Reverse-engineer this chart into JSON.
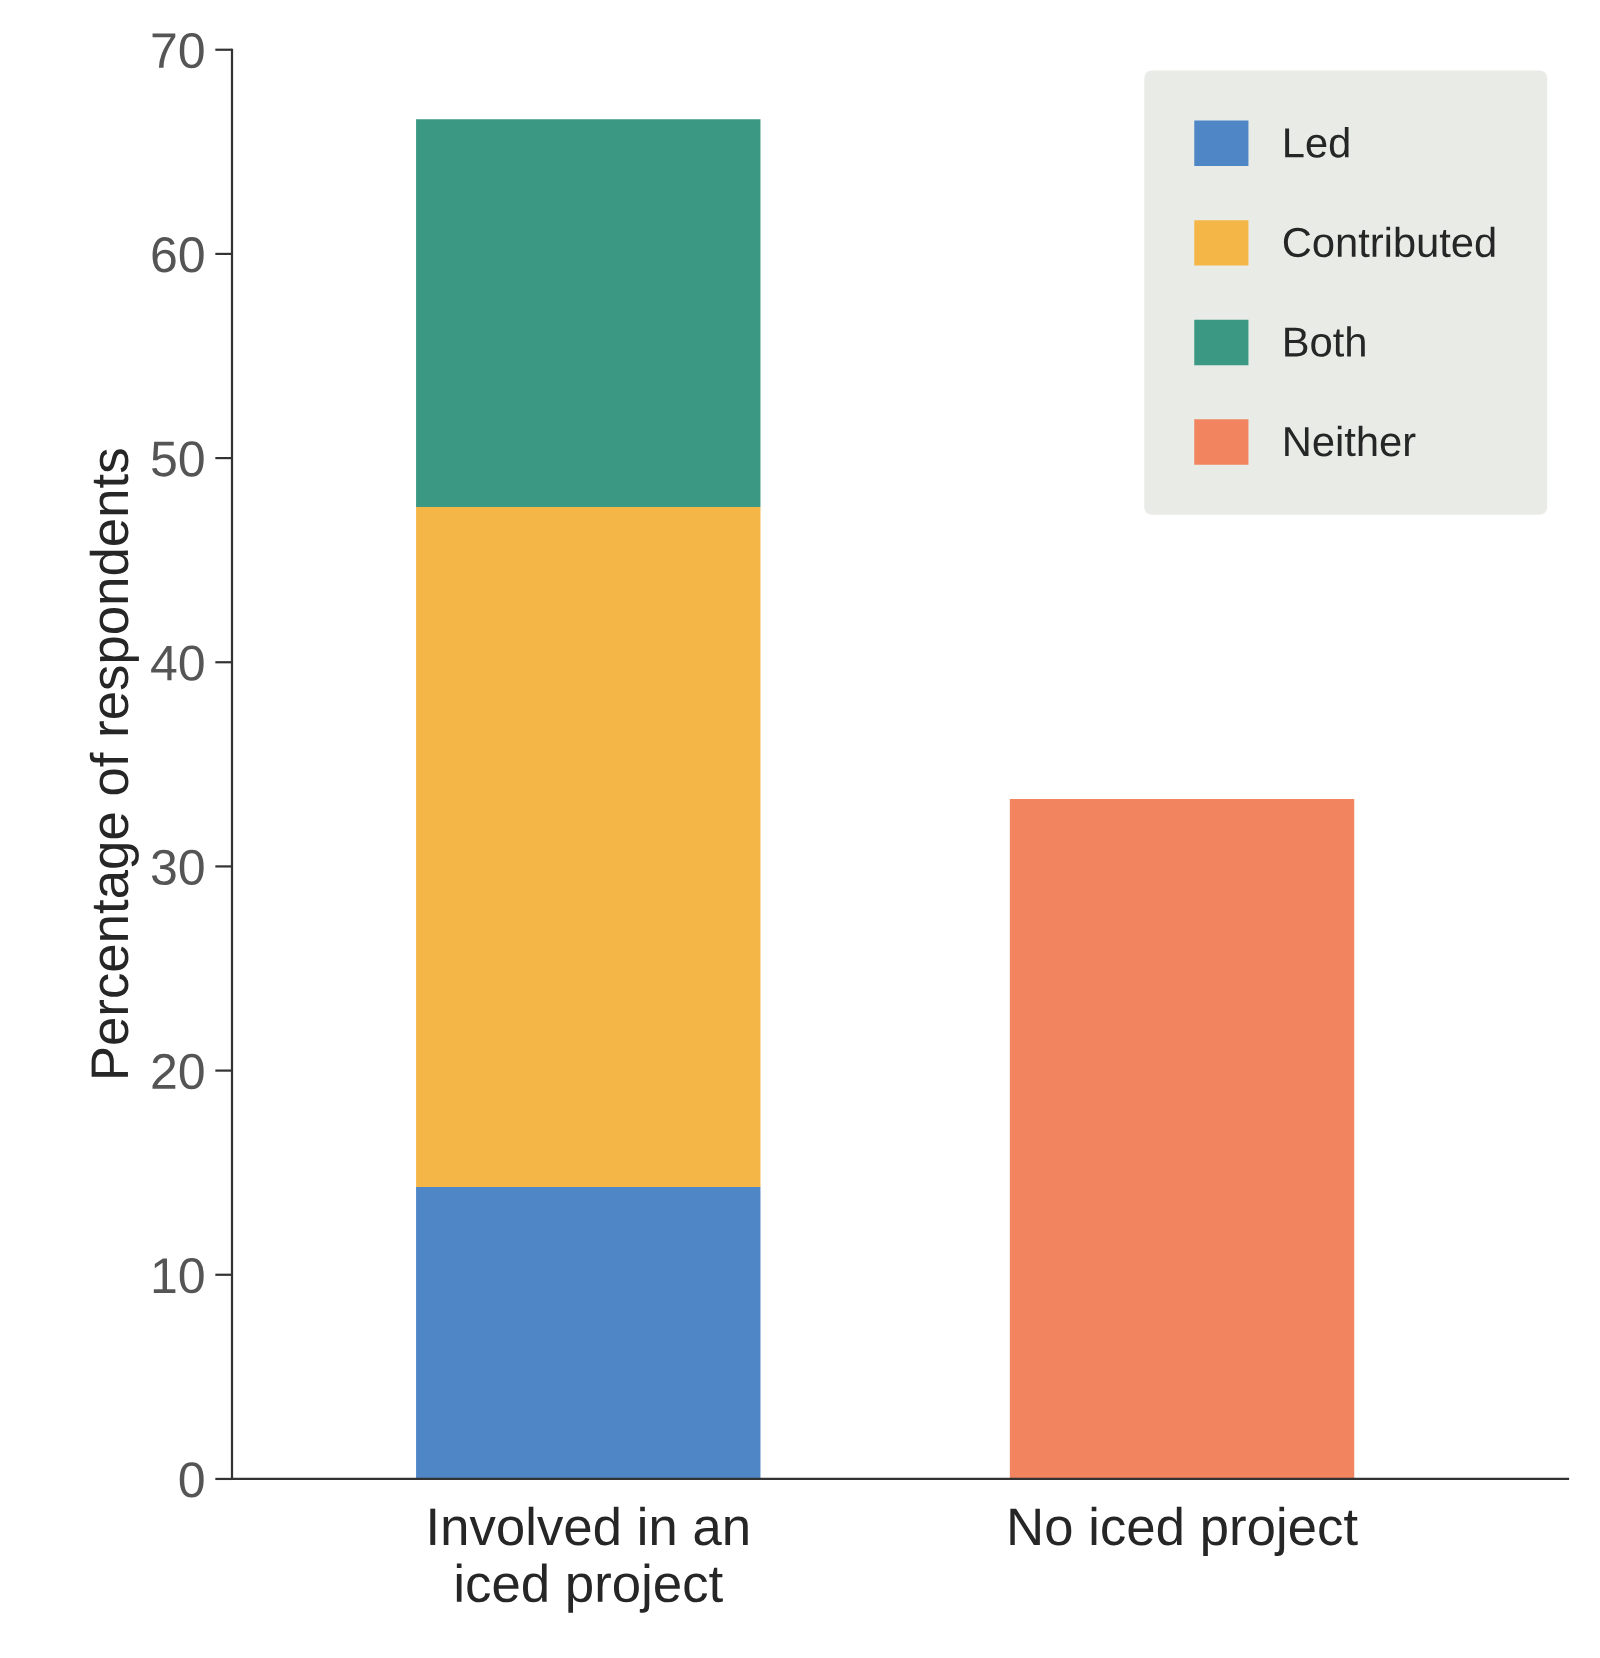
{
  "chart_data": {
    "type": "bar",
    "stacked": true,
    "ylabel": "Percentage of respondents",
    "categories": [
      "Involved in an\niced project",
      "No iced project"
    ],
    "series": [
      {
        "name": "Led",
        "color": "#4f86c6",
        "values": [
          14.3,
          null
        ]
      },
      {
        "name": "Contributed",
        "color": "#f5b648",
        "values": [
          33.3,
          null
        ]
      },
      {
        "name": "Both",
        "color": "#3a9883",
        "values": [
          19.0,
          null
        ]
      },
      {
        "name": "Neither",
        "color": "#f2845f",
        "values": [
          null,
          33.3
        ]
      }
    ],
    "ylim": [
      0,
      70
    ],
    "yticks": [
      0,
      10,
      20,
      30,
      40,
      50,
      60,
      70
    ],
    "grid": false,
    "legend": "top right"
  }
}
